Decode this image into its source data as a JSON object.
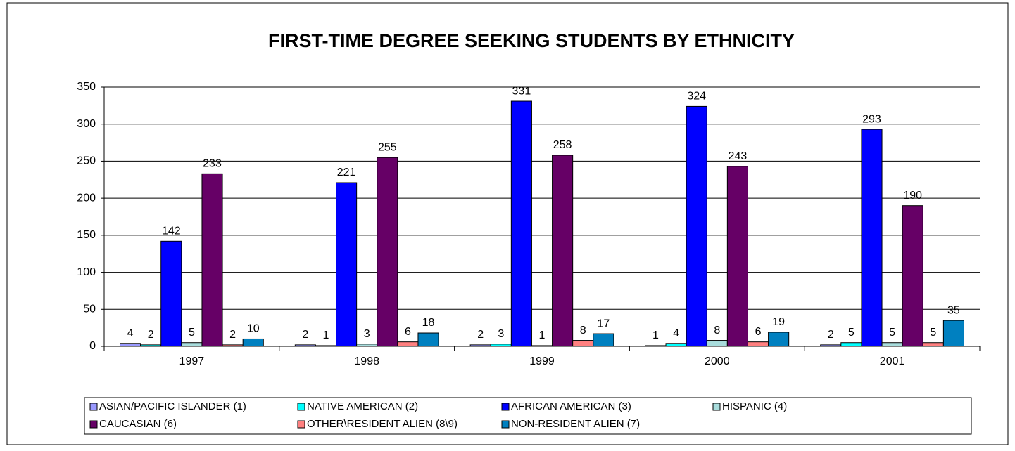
{
  "chart_data": {
    "type": "bar",
    "title": "FIRST-TIME DEGREE SEEKING STUDENTS BY ETHNICITY",
    "categories": [
      "1997",
      "1998",
      "1999",
      "2000",
      "2001"
    ],
    "series": [
      {
        "name": "ASIAN/PACIFIC ISLANDER (1)",
        "color": "#9999ff",
        "values": [
          4,
          2,
          2,
          1,
          2
        ]
      },
      {
        "name": "NATIVE AMERICAN (2)",
        "color": "#00ffff",
        "values": [
          2,
          1,
          3,
          4,
          5
        ]
      },
      {
        "name": "AFRICAN AMERICAN (3)",
        "color": "#0000ff",
        "values": [
          142,
          221,
          331,
          324,
          293
        ]
      },
      {
        "name": "HISPANIC (4)",
        "color": "#a8dcdc",
        "values": [
          5,
          3,
          1,
          8,
          5
        ]
      },
      {
        "name": "CAUCASIAN (6)",
        "color": "#660066",
        "values": [
          233,
          255,
          258,
          243,
          190
        ]
      },
      {
        "name": "OTHER\\RESIDENT ALIEN (8\\9)",
        "color": "#ff8080",
        "values": [
          2,
          6,
          8,
          6,
          5
        ]
      },
      {
        "name": "NON-RESIDENT ALIEN (7)",
        "color": "#0080c0",
        "values": [
          10,
          18,
          17,
          19,
          35
        ]
      }
    ],
    "ylim": [
      0,
      350
    ],
    "yticks": [
      0,
      50,
      100,
      150,
      200,
      250,
      300,
      350
    ],
    "grid": true,
    "legend": "bottom"
  }
}
